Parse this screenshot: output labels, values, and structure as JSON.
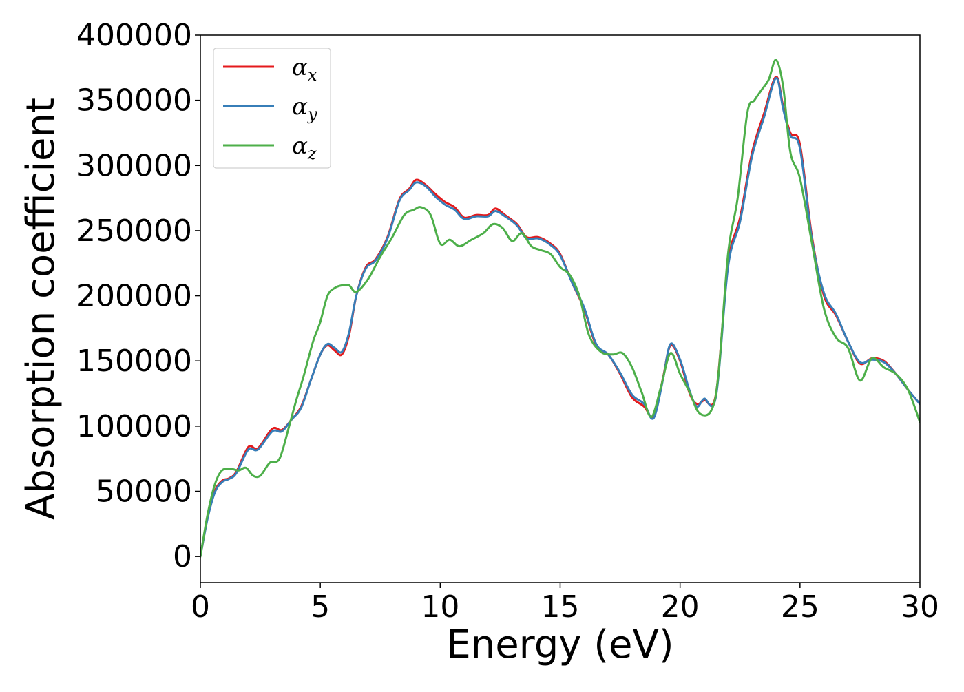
{
  "chart_data": {
    "type": "line",
    "title": "",
    "xlabel": "Energy (eV)",
    "ylabel": "Absorption coefficient",
    "xlim": [
      0,
      30
    ],
    "ylim": [
      -20000,
      400000
    ],
    "xticks": [
      0,
      5,
      10,
      15,
      20,
      25,
      30
    ],
    "yticks": [
      0,
      50000,
      100000,
      150000,
      200000,
      250000,
      300000,
      350000,
      400000
    ],
    "grid": false,
    "legend_position": "top-left",
    "series": [
      {
        "name": "α_x",
        "legend_base": "α",
        "legend_sub": "x",
        "color": "#e41a1c",
        "x": [
          0,
          0.3,
          0.6,
          0.9,
          1.2,
          1.5,
          2.0,
          2.4,
          3.0,
          3.4,
          3.8,
          4.2,
          4.6,
          5.0,
          5.3,
          5.6,
          5.9,
          6.2,
          6.5,
          6.9,
          7.3,
          7.8,
          8.3,
          8.7,
          9.0,
          9.4,
          9.8,
          10.2,
          10.6,
          11.0,
          11.5,
          12.0,
          12.3,
          12.7,
          13.2,
          13.6,
          14.1,
          14.6,
          15.0,
          15.5,
          16.0,
          16.5,
          17.0,
          17.5,
          18.0,
          18.5,
          18.8,
          19.0,
          19.3,
          19.6,
          20.0,
          20.4,
          20.7,
          21.0,
          21.5,
          22.0,
          22.5,
          23.0,
          23.5,
          24.0,
          24.3,
          24.6,
          25.0,
          25.5,
          26.0,
          26.5,
          27.0,
          27.5,
          28.0,
          28.5,
          29.0,
          29.5,
          30.0
        ],
        "values": [
          0,
          30000,
          50000,
          58000,
          60000,
          65000,
          84000,
          83000,
          98000,
          97000,
          105000,
          115000,
          135000,
          155000,
          162000,
          158000,
          155000,
          170000,
          200000,
          222000,
          228000,
          245000,
          274000,
          282000,
          289000,
          285000,
          278000,
          272000,
          268000,
          260000,
          262000,
          262000,
          267000,
          262000,
          255000,
          245000,
          245000,
          240000,
          232000,
          210000,
          190000,
          162000,
          155000,
          140000,
          122000,
          115000,
          107000,
          112000,
          138000,
          162000,
          150000,
          125000,
          117000,
          120000,
          125000,
          225000,
          260000,
          310000,
          340000,
          368000,
          345000,
          325000,
          316000,
          245000,
          200000,
          185000,
          165000,
          148000,
          152000,
          150000,
          140000,
          128000,
          117000
        ]
      },
      {
        "name": "α_y",
        "legend_base": "α",
        "legend_sub": "y",
        "color": "#377eb8",
        "x": [
          0,
          0.3,
          0.6,
          0.9,
          1.2,
          1.5,
          2.0,
          2.4,
          3.0,
          3.4,
          3.8,
          4.2,
          4.6,
          5.0,
          5.3,
          5.6,
          5.9,
          6.2,
          6.5,
          6.9,
          7.3,
          7.8,
          8.3,
          8.7,
          9.0,
          9.4,
          9.8,
          10.2,
          10.6,
          11.0,
          11.5,
          12.0,
          12.3,
          12.7,
          13.2,
          13.6,
          14.1,
          14.6,
          15.0,
          15.5,
          16.0,
          16.5,
          17.0,
          17.5,
          18.0,
          18.5,
          18.8,
          19.0,
          19.3,
          19.6,
          20.0,
          20.4,
          20.7,
          21.0,
          21.5,
          22.0,
          22.5,
          23.0,
          23.5,
          24.0,
          24.3,
          24.6,
          25.0,
          25.5,
          26.0,
          26.5,
          27.0,
          27.5,
          28.0,
          28.5,
          29.0,
          29.5,
          30.0
        ],
        "values": [
          0,
          29000,
          49000,
          57000,
          59500,
          64000,
          82000,
          82000,
          96000,
          96000,
          105000,
          114000,
          135000,
          155000,
          163000,
          160000,
          157000,
          172000,
          200000,
          221000,
          227000,
          244000,
          273000,
          281000,
          287000,
          284000,
          276000,
          270000,
          266000,
          259000,
          261000,
          261000,
          265000,
          261000,
          254000,
          244000,
          244000,
          239000,
          231000,
          210000,
          191000,
          163000,
          155000,
          141000,
          124000,
          117000,
          106000,
          111000,
          137000,
          163000,
          151000,
          127000,
          115000,
          121000,
          123000,
          222000,
          257000,
          307000,
          337000,
          367000,
          343000,
          323000,
          313000,
          243000,
          202000,
          186000,
          165000,
          149000,
          151000,
          149000,
          140000,
          128000,
          117000
        ]
      },
      {
        "name": "α_z",
        "legend_base": "α",
        "legend_sub": "z",
        "color": "#4daf4a",
        "x": [
          0,
          0.3,
          0.6,
          0.9,
          1.3,
          1.6,
          1.9,
          2.2,
          2.5,
          2.9,
          3.3,
          3.7,
          4.0,
          4.3,
          4.7,
          5.0,
          5.3,
          5.6,
          5.9,
          6.2,
          6.5,
          7.0,
          7.5,
          8.0,
          8.5,
          8.9,
          9.2,
          9.6,
          10.0,
          10.4,
          10.8,
          11.3,
          11.8,
          12.2,
          12.6,
          13.0,
          13.4,
          13.8,
          14.2,
          14.6,
          15.0,
          15.4,
          15.8,
          16.2,
          16.7,
          17.2,
          17.6,
          18.0,
          18.4,
          18.8,
          19.2,
          19.6,
          20.0,
          20.4,
          20.8,
          21.3,
          21.6,
          22.0,
          22.4,
          22.8,
          23.1,
          23.4,
          23.7,
          24.0,
          24.3,
          24.6,
          25.0,
          25.5,
          26.0,
          26.5,
          27.0,
          27.5,
          28.0,
          28.5,
          29.0,
          29.5,
          30.0
        ],
        "values": [
          0,
          32000,
          55000,
          66000,
          67000,
          66000,
          68000,
          62000,
          62000,
          72000,
          75000,
          100000,
          120000,
          138000,
          165000,
          180000,
          200000,
          206000,
          208000,
          208000,
          203000,
          213000,
          230000,
          245000,
          262000,
          266000,
          268000,
          262000,
          240000,
          243000,
          238000,
          243000,
          248000,
          255000,
          252000,
          242000,
          248000,
          238000,
          235000,
          232000,
          222000,
          216000,
          200000,
          170000,
          157000,
          155000,
          156000,
          145000,
          126000,
          107000,
          130000,
          156000,
          140000,
          126000,
          110000,
          112000,
          140000,
          232000,
          275000,
          340000,
          350000,
          358000,
          366000,
          381000,
          360000,
          310000,
          290000,
          240000,
          190000,
          168000,
          160000,
          135000,
          152000,
          145000,
          140000,
          128000,
          103000
        ]
      }
    ]
  }
}
